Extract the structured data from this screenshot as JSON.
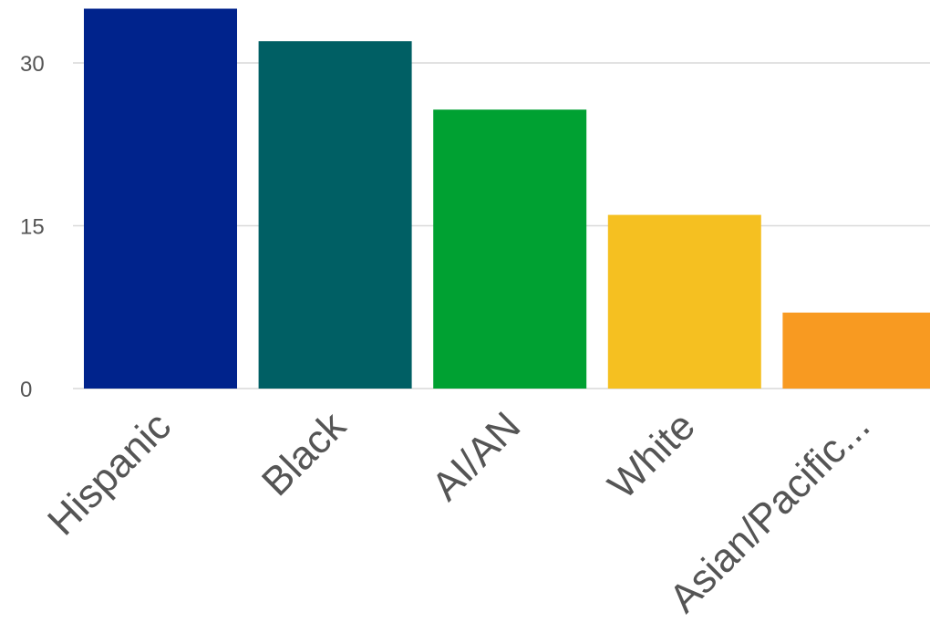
{
  "chart_data": {
    "type": "bar",
    "title": "",
    "xlabel": "",
    "ylabel": "",
    "categories": [
      "Hispanic",
      "Black",
      "AI/AN",
      "White",
      "Asian/Pacific..."
    ],
    "values": [
      35,
      32,
      25.7,
      16,
      7
    ],
    "colors": [
      "#00238C",
      "#005F64",
      "#00A132",
      "#F5C021",
      "#F89A21"
    ],
    "ylim": [
      0,
      35
    ],
    "yticks": [
      0,
      15,
      30
    ],
    "grid": true,
    "legend": "none"
  },
  "colors": {
    "gridline": "#D9D9D9",
    "tick_text": "#555555"
  }
}
